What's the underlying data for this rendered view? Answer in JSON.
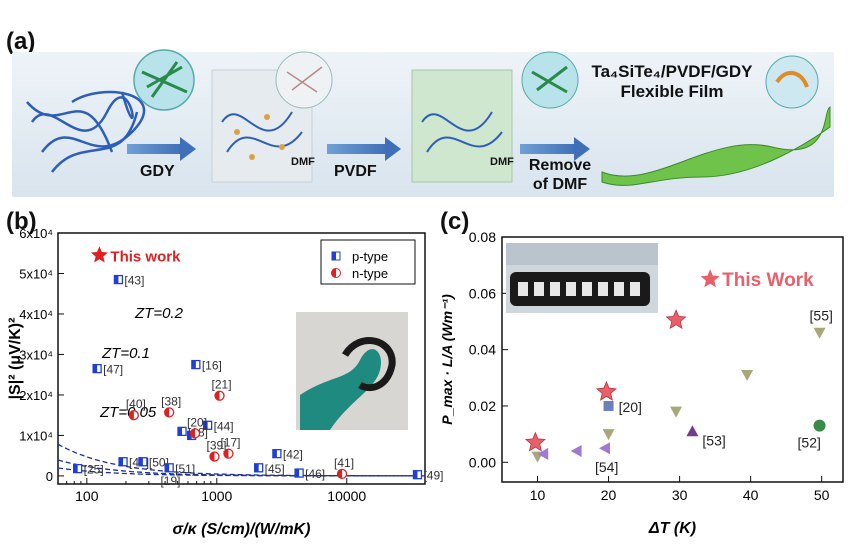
{
  "panel_a": {
    "label": "(a)",
    "steps": [
      "GDY",
      "PVDF",
      "Remove\nof DMF"
    ],
    "dmf_labels": [
      "DMF",
      "DMF"
    ],
    "film_title_line1": "Ta₄SiTe₄/PVDF/GDY",
    "film_title_line2": "Flexible Film"
  },
  "panel_b": {
    "label": "(b)",
    "inset_description_icon": "flexible-film-photo"
  },
  "panel_c": {
    "label": "(c)",
    "inset_description_icon": "device-photo"
  },
  "chart_data": [
    {
      "type": "scatter",
      "id": "b",
      "xlabel": "σ/κ (S/cm)/(W/mK)",
      "ylabel": "|S|² (μV/K)²",
      "xscale": "log",
      "xlim": [
        60,
        40000
      ],
      "ylim": [
        -2000,
        60000
      ],
      "xticks": [
        "100",
        "1000",
        "10000"
      ],
      "xtick_values": [
        100,
        1000,
        10000
      ],
      "yticks": [
        "0",
        "1x10⁴",
        "2x10⁴",
        "3x10⁴",
        "4x10⁴",
        "5x10⁴",
        "6x10⁴"
      ],
      "ytick_values": [
        0,
        10000,
        20000,
        30000,
        40000,
        50000,
        60000
      ],
      "legend": [
        {
          "label": "p-type",
          "color": "#1f3fd6"
        },
        {
          "label": "n-type",
          "color": "#e02020"
        }
      ],
      "zt_curves": [
        {
          "label": "ZT=0.2",
          "zt": 0.2
        },
        {
          "label": "ZT=0.1",
          "zt": 0.1
        },
        {
          "label": "ZT=0.05",
          "zt": 0.05
        }
      ],
      "this_work": {
        "label": "This work",
        "x": 125,
        "y": 54500
      },
      "p_type": [
        {
          "x": 175,
          "y": 48500,
          "ref": "[43]"
        },
        {
          "x": 120,
          "y": 26500,
          "ref": "[47]"
        },
        {
          "x": 690,
          "y": 27500,
          "ref": "[16]"
        },
        {
          "x": 850,
          "y": 12500,
          "ref": "[44]"
        },
        {
          "x": 540,
          "y": 11000,
          "ref": "[18]"
        },
        {
          "x": 640,
          "y": 10000,
          "ref": ""
        },
        {
          "x": 85,
          "y": 1800,
          "ref": "[25]"
        },
        {
          "x": 190,
          "y": 3500,
          "ref": "[48]"
        },
        {
          "x": 270,
          "y": 3500,
          "ref": "[50]"
        },
        {
          "x": 430,
          "y": 2000,
          "ref": "[51]"
        },
        {
          "x": 2100,
          "y": 2000,
          "ref": "[45]"
        },
        {
          "x": 2900,
          "y": 5500,
          "ref": "[42]"
        },
        {
          "x": 4300,
          "y": 700,
          "ref": "[46]"
        },
        {
          "x": 35000,
          "y": 300,
          "ref": "[49]"
        }
      ],
      "n_type": [
        {
          "x": 230,
          "y": 15000,
          "ref": "[40]"
        },
        {
          "x": 430,
          "y": 15700,
          "ref": "[38]"
        },
        {
          "x": 680,
          "y": 10500,
          "ref": "[20]"
        },
        {
          "x": 1050,
          "y": 19800,
          "ref": "[21]"
        },
        {
          "x": 960,
          "y": 4800,
          "ref": "[39]"
        },
        {
          "x": 1230,
          "y": 5500,
          "ref": "[17]"
        },
        {
          "x": 9200,
          "y": 500,
          "ref": "[41]"
        }
      ],
      "other_refs": [
        {
          "x": 440,
          "y": 1200,
          "ref": "[19]"
        }
      ]
    },
    {
      "type": "scatter",
      "id": "c",
      "xlabel": "ΔT (K)",
      "ylabel": "P_max · L/A (Wm⁻¹)",
      "xlim": [
        5,
        53
      ],
      "ylim": [
        -0.007,
        0.08
      ],
      "xticks": [
        "10",
        "20",
        "30",
        "40",
        "50"
      ],
      "xtick_values": [
        10,
        20,
        30,
        40,
        50
      ],
      "yticks": [
        "0.00",
        "0.02",
        "0.04",
        "0.06",
        "0.08"
      ],
      "ytick_values": [
        0,
        0.02,
        0.04,
        0.06,
        0.08
      ],
      "this_work_label": "This Work",
      "this_work_legend": {
        "x": 34.3,
        "y": 0.065
      },
      "this_work": [
        {
          "x": 9.7,
          "y": 0.007
        },
        {
          "x": 19.7,
          "y": 0.025
        },
        {
          "x": 29.5,
          "y": 0.0505
        }
      ],
      "series": [
        {
          "ref": "[55]",
          "marker": "triangle-down",
          "color": "#a8a77a",
          "points": [
            [
              10,
              0.002
            ],
            [
              20,
              0.01
            ],
            [
              29.5,
              0.018
            ],
            [
              39.5,
              0.031
            ],
            [
              49.7,
              0.046
            ]
          ]
        },
        {
          "ref": "[54]",
          "marker": "triangle-left",
          "color": "#a07ad0",
          "points": [
            [
              10.8,
              0.003
            ],
            [
              15.5,
              0.004
            ],
            [
              19.5,
              0.005
            ]
          ]
        },
        {
          "ref": "[20]",
          "marker": "square",
          "color": "#6a7fc0",
          "points": [
            [
              20,
              0.02
            ]
          ]
        },
        {
          "ref": "[53]",
          "marker": "triangle-up",
          "color": "#7a3a8a",
          "points": [
            [
              31.8,
              0.011
            ]
          ]
        },
        {
          "ref": "[52]",
          "marker": "circle",
          "color": "#3a8a4a",
          "points": [
            [
              49.7,
              0.013
            ]
          ]
        }
      ]
    }
  ]
}
